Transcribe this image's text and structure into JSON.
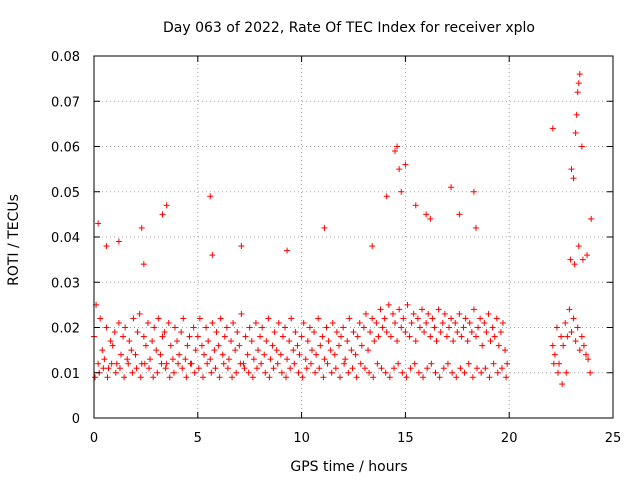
{
  "chart_data": {
    "type": "scatter",
    "title": "Day 063 of 2022, Rate Of TEC Index for receiver xplo",
    "xlabel": "GPS time / hours",
    "ylabel": "ROTI / TECUs",
    "xlim": [
      0,
      25
    ],
    "ylim": [
      0,
      0.08
    ],
    "x_ticks": [
      0,
      5,
      10,
      15,
      20,
      25
    ],
    "y_ticks": [
      0,
      0.01,
      0.02,
      0.03,
      0.04,
      0.05,
      0.06,
      0.07,
      0.08
    ],
    "x_tick_labels": [
      "0",
      "5",
      "10",
      "15",
      "20",
      "25"
    ],
    "y_tick_labels": [
      "0",
      "0.01",
      "0.02",
      "0.03",
      "0.04",
      "0.05",
      "0.06",
      "0.07",
      "0.08"
    ],
    "grid": true,
    "marker": "plus",
    "color": "#ff0000",
    "series": [
      {
        "x": [
          0.0,
          0.1,
          0.2,
          0.3,
          0.4,
          0.5,
          0.6,
          0.7,
          0.8,
          0.9,
          1.0,
          1.1,
          1.2,
          1.3,
          1.4,
          1.5,
          1.6,
          1.7,
          1.8,
          1.9,
          2.0,
          2.1,
          2.2,
          2.3,
          2.4,
          2.5,
          2.6,
          2.7,
          2.8,
          2.9,
          3.0,
          3.1,
          3.2,
          3.3,
          3.4,
          3.5,
          3.6,
          3.7,
          3.8,
          3.9,
          4.0,
          4.1,
          4.2,
          4.3,
          4.4,
          4.5,
          4.6,
          4.7,
          4.8,
          4.9,
          5.0,
          5.1,
          5.2,
          5.3,
          5.4,
          5.5,
          5.6,
          5.7,
          5.8,
          5.9,
          6.0,
          6.1,
          6.2,
          6.3,
          6.4,
          6.5,
          6.6,
          6.7,
          6.8,
          6.9,
          7.0,
          7.1,
          7.2,
          7.3,
          7.4,
          7.5,
          7.6,
          7.7,
          7.8,
          7.9,
          8.0,
          8.1,
          8.2,
          8.3,
          8.4,
          8.5,
          8.6,
          8.7,
          8.8,
          8.9,
          9.0,
          9.1,
          9.2,
          9.3,
          9.4,
          9.5,
          9.6,
          9.7,
          9.8,
          9.9,
          10.0,
          10.1,
          10.2,
          10.3,
          10.4,
          10.5,
          10.6,
          10.7,
          10.8,
          10.9,
          11.0,
          11.1,
          11.2,
          11.3,
          11.4,
          11.5,
          11.6,
          11.7,
          11.8,
          11.9,
          12.0,
          12.1,
          12.2,
          12.3,
          12.4,
          12.5,
          12.6,
          12.7,
          12.8,
          12.9,
          13.0,
          13.1,
          13.2,
          13.3,
          13.4,
          13.5,
          13.6,
          13.7,
          13.8,
          13.9,
          14.0,
          14.1,
          14.2,
          14.3,
          14.4,
          14.5,
          14.6,
          14.7,
          14.8,
          14.9,
          15.0,
          15.1,
          15.2,
          15.3,
          15.4,
          15.5,
          15.6,
          15.7,
          15.8,
          15.9,
          16.0,
          16.1,
          16.2,
          16.3,
          16.4,
          16.5,
          16.6,
          16.7,
          16.8,
          16.9,
          17.0,
          17.1,
          17.2,
          17.3,
          17.4,
          17.5,
          17.6,
          17.7,
          17.8,
          17.9,
          18.0,
          18.1,
          18.2,
          18.3,
          18.4,
          18.5,
          18.6,
          18.7,
          18.8,
          18.9,
          19.0,
          19.1,
          19.2,
          19.3,
          19.4,
          19.5,
          19.6,
          19.7,
          19.8,
          19.9,
          22.1,
          22.2,
          22.3,
          22.4,
          22.5,
          22.6,
          22.7,
          22.8,
          22.9,
          23.0,
          23.1,
          23.2,
          23.3,
          23.4,
          23.5,
          23.6,
          23.7,
          23.8,
          23.9,
          0.05,
          0.25,
          0.45,
          0.65,
          0.85,
          1.05,
          1.25,
          1.45,
          1.65,
          1.85,
          2.05,
          2.25,
          2.45,
          2.65,
          2.85,
          3.05,
          3.25,
          3.45,
          3.65,
          3.85,
          4.05,
          4.25,
          4.45,
          4.65,
          4.85,
          5.05,
          5.25,
          5.45,
          5.65,
          5.85,
          6.05,
          6.25,
          6.45,
          6.65,
          6.85,
          7.05,
          7.25,
          7.45,
          7.65,
          7.85,
          8.05,
          8.25,
          8.45,
          8.65,
          8.85,
          9.05,
          9.25,
          9.45,
          9.65,
          9.85,
          10.05,
          10.25,
          10.45,
          10.65,
          10.85,
          11.05,
          11.25,
          11.45,
          11.65,
          11.85,
          12.05,
          12.25,
          12.45,
          12.65,
          12.85,
          13.05,
          13.25,
          13.45,
          13.65,
          13.85,
          14.05,
          14.25,
          14.45,
          14.65,
          14.85,
          15.05,
          15.25,
          15.45,
          15.65,
          15.85,
          16.05,
          16.25,
          16.45,
          16.65,
          16.85,
          17.05,
          17.25,
          17.45,
          17.65,
          17.85,
          18.05,
          18.25,
          18.45,
          18.65,
          18.85,
          19.05,
          19.25,
          19.45,
          19.65,
          19.85,
          22.15,
          22.35,
          22.55,
          22.75,
          22.95,
          23.15,
          23.35,
          23.55,
          23.75,
          23.95,
          0.2,
          0.6,
          1.2,
          2.3,
          2.4,
          3.3,
          3.5,
          5.6,
          5.7,
          7.1,
          9.3,
          11.1,
          13.4,
          14.1,
          14.5,
          14.6,
          14.7,
          14.8,
          15.0,
          15.5,
          16.0,
          16.2,
          17.2,
          17.6,
          18.3,
          18.4,
          22.1,
          23.0,
          23.1,
          23.2,
          23.25,
          23.3,
          23.35,
          23.4,
          23.5
        ],
        "y": [
          0.018,
          0.025,
          0.012,
          0.022,
          0.015,
          0.013,
          0.02,
          0.011,
          0.017,
          0.016,
          0.019,
          0.012,
          0.021,
          0.014,
          0.018,
          0.02,
          0.013,
          0.017,
          0.015,
          0.022,
          0.014,
          0.019,
          0.023,
          0.012,
          0.018,
          0.016,
          0.021,
          0.013,
          0.017,
          0.02,
          0.015,
          0.022,
          0.014,
          0.018,
          0.019,
          0.012,
          0.021,
          0.016,
          0.013,
          0.02,
          0.017,
          0.014,
          0.019,
          0.022,
          0.013,
          0.016,
          0.018,
          0.012,
          0.02,
          0.015,
          0.018,
          0.022,
          0.016,
          0.014,
          0.02,
          0.017,
          0.013,
          0.021,
          0.015,
          0.019,
          0.016,
          0.022,
          0.014,
          0.018,
          0.02,
          0.013,
          0.017,
          0.021,
          0.015,
          0.019,
          0.016,
          0.023,
          0.012,
          0.018,
          0.014,
          0.02,
          0.017,
          0.013,
          0.021,
          0.015,
          0.018,
          0.02,
          0.014,
          0.017,
          0.022,
          0.013,
          0.016,
          0.019,
          0.015,
          0.021,
          0.014,
          0.018,
          0.02,
          0.013,
          0.017,
          0.022,
          0.015,
          0.019,
          0.016,
          0.014,
          0.018,
          0.021,
          0.013,
          0.017,
          0.02,
          0.015,
          0.019,
          0.014,
          0.022,
          0.016,
          0.018,
          0.013,
          0.02,
          0.017,
          0.015,
          0.021,
          0.014,
          0.019,
          0.016,
          0.018,
          0.02,
          0.013,
          0.017,
          0.022,
          0.015,
          0.019,
          0.014,
          0.018,
          0.021,
          0.016,
          0.02,
          0.023,
          0.015,
          0.019,
          0.022,
          0.017,
          0.021,
          0.018,
          0.024,
          0.02,
          0.022,
          0.019,
          0.025,
          0.018,
          0.023,
          0.021,
          0.017,
          0.024,
          0.02,
          0.022,
          0.019,
          0.025,
          0.018,
          0.021,
          0.023,
          0.017,
          0.022,
          0.02,
          0.024,
          0.019,
          0.021,
          0.023,
          0.018,
          0.022,
          0.02,
          0.017,
          0.024,
          0.019,
          0.021,
          0.023,
          0.018,
          0.02,
          0.022,
          0.017,
          0.021,
          0.019,
          0.023,
          0.018,
          0.02,
          0.022,
          0.017,
          0.021,
          0.019,
          0.024,
          0.018,
          0.02,
          0.022,
          0.016,
          0.021,
          0.019,
          0.023,
          0.017,
          0.02,
          0.018,
          0.022,
          0.016,
          0.019,
          0.021,
          0.015,
          0.012,
          0.016,
          0.014,
          0.02,
          0.012,
          0.018,
          0.016,
          0.021,
          0.018,
          0.024,
          0.019,
          0.022,
          0.017,
          0.02,
          0.015,
          0.018,
          0.016,
          0.014,
          0.013,
          0.01,
          0.009,
          0.01,
          0.011,
          0.009,
          0.012,
          0.01,
          0.011,
          0.009,
          0.012,
          0.01,
          0.011,
          0.009,
          0.012,
          0.011,
          0.009,
          0.01,
          0.012,
          0.011,
          0.009,
          0.01,
          0.012,
          0.011,
          0.009,
          0.012,
          0.01,
          0.011,
          0.009,
          0.012,
          0.01,
          0.011,
          0.009,
          0.012,
          0.011,
          0.009,
          0.01,
          0.012,
          0.011,
          0.01,
          0.009,
          0.011,
          0.012,
          0.01,
          0.009,
          0.011,
          0.012,
          0.01,
          0.009,
          0.011,
          0.012,
          0.01,
          0.009,
          0.011,
          0.012,
          0.01,
          0.011,
          0.009,
          0.012,
          0.01,
          0.011,
          0.009,
          0.012,
          0.01,
          0.011,
          0.009,
          0.012,
          0.011,
          0.01,
          0.009,
          0.012,
          0.011,
          0.01,
          0.009,
          0.011,
          0.012,
          0.01,
          0.009,
          0.011,
          0.012,
          0.01,
          0.009,
          0.011,
          0.012,
          0.01,
          0.009,
          0.011,
          0.012,
          0.01,
          0.009,
          0.011,
          0.01,
          0.012,
          0.009,
          0.011,
          0.01,
          0.011,
          0.009,
          0.012,
          0.01,
          0.011,
          0.009,
          0.012,
          0.01,
          0.0075,
          0.01,
          0.035,
          0.034,
          0.038,
          0.035,
          0.036,
          0.044,
          0.043,
          0.038,
          0.039,
          0.042,
          0.034,
          0.045,
          0.047,
          0.049,
          0.036,
          0.038,
          0.037,
          0.042,
          0.038,
          0.049,
          0.059,
          0.06,
          0.055,
          0.05,
          0.056,
          0.047,
          0.045,
          0.044,
          0.051,
          0.045,
          0.05,
          0.042,
          0.064,
          0.055,
          0.053,
          0.063,
          0.067,
          0.072,
          0.074,
          0.076,
          0.06
        ]
      }
    ]
  }
}
